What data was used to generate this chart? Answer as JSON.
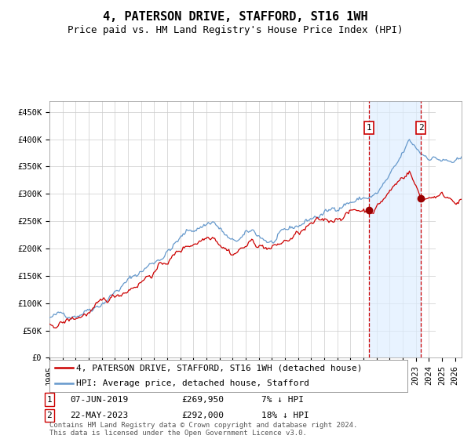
{
  "title": "4, PATERSON DRIVE, STAFFORD, ST16 1WH",
  "subtitle": "Price paid vs. HM Land Registry's House Price Index (HPI)",
  "ylim": [
    0,
    470000
  ],
  "xlim_start": 1995.0,
  "xlim_end": 2026.5,
  "yticks": [
    0,
    50000,
    100000,
    150000,
    200000,
    250000,
    300000,
    350000,
    400000,
    450000
  ],
  "ytick_labels": [
    "£0",
    "£50K",
    "£100K",
    "£150K",
    "£200K",
    "£250K",
    "£300K",
    "£350K",
    "£400K",
    "£450K"
  ],
  "xticks": [
    1995,
    1996,
    1997,
    1998,
    1999,
    2000,
    2001,
    2002,
    2003,
    2004,
    2005,
    2006,
    2007,
    2008,
    2009,
    2010,
    2011,
    2012,
    2013,
    2014,
    2015,
    2016,
    2017,
    2018,
    2019,
    2020,
    2021,
    2022,
    2023,
    2024,
    2025,
    2026
  ],
  "red_line_color": "#cc0000",
  "blue_line_color": "#6699cc",
  "marker_color": "#990000",
  "point1_x": 2019.44,
  "point1_y": 269950,
  "point2_x": 2023.39,
  "point2_y": 292000,
  "vline1_x": 2019.44,
  "vline2_x": 2023.39,
  "hatch_after": 2024.5,
  "legend_label_red": "4, PATERSON DRIVE, STAFFORD, ST16 1WH (detached house)",
  "legend_label_blue": "HPI: Average price, detached house, Stafford",
  "note1_label": "1",
  "note1_date": "07-JUN-2019",
  "note1_price": "£269,950",
  "note1_hpi": "7% ↓ HPI",
  "note2_label": "2",
  "note2_date": "22-MAY-2023",
  "note2_price": "£292,000",
  "note2_hpi": "18% ↓ HPI",
  "footer": "Contains HM Land Registry data © Crown copyright and database right 2024.\nThis data is licensed under the Open Government Licence v3.0.",
  "background_color": "#ffffff",
  "grid_color": "#cccccc",
  "title_fontsize": 11,
  "subtitle_fontsize": 9,
  "tick_fontsize": 7.5,
  "legend_fontsize": 8,
  "note_fontsize": 8,
  "footer_fontsize": 6.5,
  "hpi_anchors_x": [
    1995.0,
    1997.0,
    1999.0,
    2001.0,
    2003.5,
    2005.5,
    2007.5,
    2009.0,
    2010.5,
    2012.0,
    2013.5,
    2015.0,
    2016.5,
    2017.5,
    2019.0,
    2020.0,
    2021.5,
    2022.5,
    2023.5,
    2024.5,
    2025.5,
    2026.5
  ],
  "hpi_anchors_y": [
    73000,
    82000,
    105000,
    140000,
    185000,
    228000,
    252000,
    208000,
    228000,
    210000,
    232000,
    255000,
    268000,
    285000,
    292000,
    298000,
    345000,
    392000,
    372000,
    368000,
    358000,
    355000
  ],
  "red_anchors_x": [
    1995.0,
    1997.0,
    1999.0,
    2001.0,
    2003.5,
    2005.5,
    2007.5,
    2009.0,
    2010.5,
    2012.0,
    2013.5,
    2015.0,
    2016.5,
    2017.5,
    2019.0,
    2019.44,
    2020.0,
    2021.5,
    2022.5,
    2023.39,
    2024.0,
    2024.5,
    2025.5,
    2026.5
  ],
  "red_anchors_y": [
    62000,
    73000,
    95000,
    128000,
    168000,
    205000,
    230000,
    195000,
    212000,
    200000,
    218000,
    240000,
    250000,
    265000,
    272000,
    269950,
    278000,
    318000,
    345000,
    292000,
    295000,
    300000,
    295000,
    292000
  ]
}
